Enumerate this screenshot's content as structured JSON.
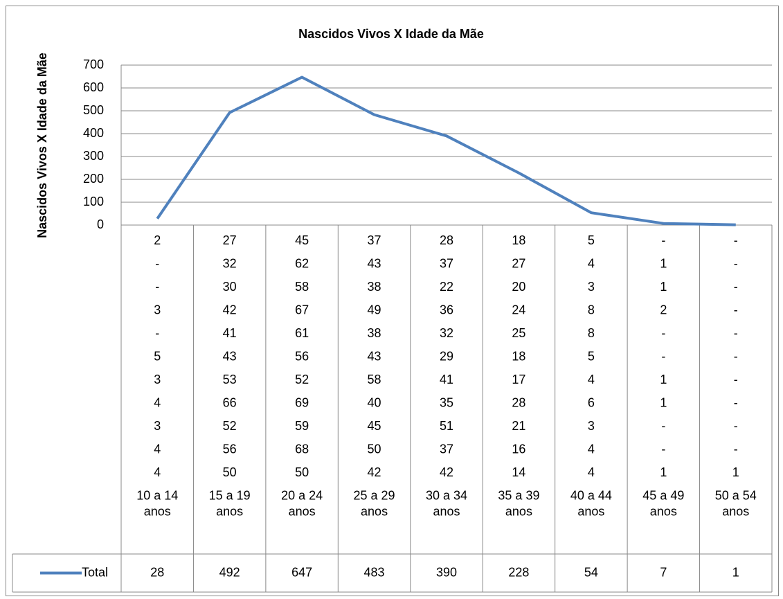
{
  "chart_data": {
    "type": "line",
    "title": "Nascidos Vivos X Idade da Mãe",
    "ylabel": "Nascidos Vivos X Idade da Mãe",
    "categories": [
      "10 a 14 anos",
      "15 a 19 anos",
      "20 a 24 anos",
      "25 a 29 anos",
      "30 a 34 anos",
      "35 a 39 anos",
      "40 a 44 anos",
      "45 a 49 anos",
      "50 a 54 anos"
    ],
    "category_rows": [
      [
        2,
        27,
        45,
        37,
        28,
        18,
        5,
        "-",
        "-"
      ],
      [
        "-",
        32,
        62,
        43,
        37,
        27,
        4,
        1,
        "-"
      ],
      [
        "-",
        30,
        58,
        38,
        22,
        20,
        3,
        1,
        "-"
      ],
      [
        3,
        42,
        67,
        49,
        36,
        24,
        8,
        2,
        "-"
      ],
      [
        "-",
        41,
        61,
        38,
        32,
        25,
        8,
        "-",
        "-"
      ],
      [
        5,
        43,
        56,
        43,
        29,
        18,
        5,
        "-",
        "-"
      ],
      [
        3,
        53,
        52,
        58,
        41,
        17,
        4,
        1,
        "-"
      ],
      [
        4,
        66,
        69,
        40,
        35,
        28,
        6,
        1,
        "-"
      ],
      [
        3,
        52,
        59,
        45,
        51,
        21,
        3,
        "-",
        "-"
      ],
      [
        4,
        56,
        68,
        50,
        37,
        16,
        4,
        "-",
        "-"
      ],
      [
        4,
        50,
        50,
        42,
        42,
        14,
        4,
        1,
        1
      ]
    ],
    "series": [
      {
        "name": "Total",
        "color": "#4f81bd",
        "values": [
          28,
          492,
          647,
          483,
          390,
          228,
          54,
          7,
          1
        ]
      }
    ],
    "ylim": [
      0,
      700
    ],
    "yticks": [
      0,
      100,
      200,
      300,
      400,
      500,
      600,
      700
    ],
    "grid": true
  }
}
